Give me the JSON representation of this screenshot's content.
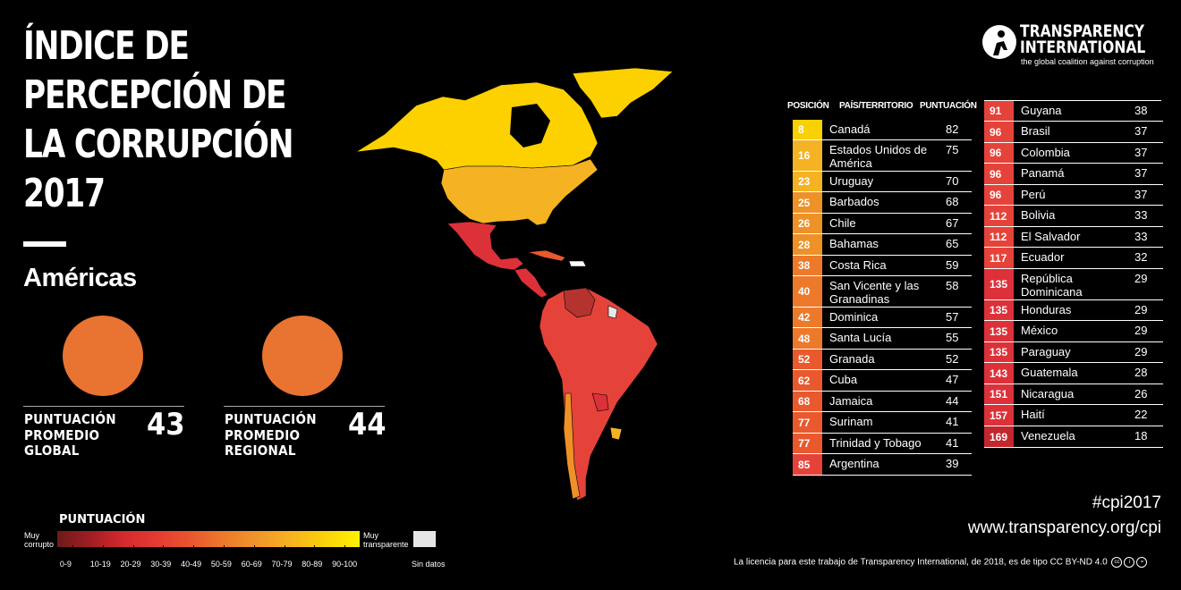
{
  "title": [
    "ÍNDICE DE",
    "PERCEPCIÓN DE",
    "LA CORRUPCIÓN",
    "2017"
  ],
  "region": "Américas",
  "averages": {
    "global": {
      "label": [
        "PUNTUACIÓN",
        "PROMEDIO",
        "GLOBAL"
      ],
      "value": "43"
    },
    "regional": {
      "label": [
        "PUNTUACIÓN",
        "PROMEDIO",
        "REGIONAL"
      ],
      "value": "44"
    }
  },
  "logo": {
    "line1": "TRANSPARENCY",
    "line2": "INTERNATIONAL",
    "tagline": "the global coalition against corruption"
  },
  "table": {
    "headers": {
      "position": "POSICIÓN",
      "country": "PAÍS/TERRITORIO",
      "score": "PUNTUACIÓN"
    },
    "left": [
      {
        "rank": "8",
        "country": "Canadá",
        "score": "82",
        "color": "#f9d100"
      },
      {
        "rank": "16",
        "country": "Estados Unidos de América",
        "score": "75",
        "color": "#f5b324"
      },
      {
        "rank": "23",
        "country": "Uruguay",
        "score": "70",
        "color": "#f5b324"
      },
      {
        "rank": "25",
        "country": "Barbados",
        "score": "68",
        "color": "#ee9127"
      },
      {
        "rank": "26",
        "country": "Chile",
        "score": "67",
        "color": "#ee9127"
      },
      {
        "rank": "28",
        "country": "Bahamas",
        "score": "65",
        "color": "#ee9127"
      },
      {
        "rank": "38",
        "country": "Costa Rica",
        "score": "59",
        "color": "#ec7a2a"
      },
      {
        "rank": "40",
        "country": "San Vicente y las Granadinas",
        "score": "58",
        "color": "#ec7a2a"
      },
      {
        "rank": "42",
        "country": "Dominica",
        "score": "57",
        "color": "#ec7a2a"
      },
      {
        "rank": "48",
        "country": "Santa Lucía",
        "score": "55",
        "color": "#ec7a2a"
      },
      {
        "rank": "52",
        "country": "Granada",
        "score": "52",
        "color": "#e9592d"
      },
      {
        "rank": "62",
        "country": "Cuba",
        "score": "47",
        "color": "#e9592d"
      },
      {
        "rank": "68",
        "country": "Jamaica",
        "score": "44",
        "color": "#e9592d"
      },
      {
        "rank": "77",
        "country": "Surinam",
        "score": "41",
        "color": "#e9592d"
      },
      {
        "rank": "77",
        "country": "Trinidad y Tobago",
        "score": "41",
        "color": "#e9592d"
      },
      {
        "rank": "85",
        "country": "Argentina",
        "score": "39",
        "color": "#e5433a"
      }
    ],
    "right": [
      {
        "rank": "91",
        "country": "Guyana",
        "score": "38",
        "color": "#e5433a"
      },
      {
        "rank": "96",
        "country": "Brasil",
        "score": "37",
        "color": "#e5433a"
      },
      {
        "rank": "96",
        "country": "Colombia",
        "score": "37",
        "color": "#e5433a"
      },
      {
        "rank": "96",
        "country": "Panamá",
        "score": "37",
        "color": "#e5433a"
      },
      {
        "rank": "96",
        "country": "Perú",
        "score": "37",
        "color": "#e5433a"
      },
      {
        "rank": "112",
        "country": "Bolivia",
        "score": "33",
        "color": "#e5433a"
      },
      {
        "rank": "112",
        "country": "El Salvador",
        "score": "33",
        "color": "#e5433a"
      },
      {
        "rank": "117",
        "country": "Ecuador",
        "score": "32",
        "color": "#e5433a"
      },
      {
        "rank": "135",
        "country": "República Dominicana",
        "score": "29",
        "color": "#dd3139"
      },
      {
        "rank": "135",
        "country": "Honduras",
        "score": "29",
        "color": "#dd3139"
      },
      {
        "rank": "135",
        "country": "México",
        "score": "29",
        "color": "#dd3139"
      },
      {
        "rank": "135",
        "country": "Paraguay",
        "score": "29",
        "color": "#dd3139"
      },
      {
        "rank": "143",
        "country": "Guatemala",
        "score": "28",
        "color": "#dd3139"
      },
      {
        "rank": "151",
        "country": "Nicaragua",
        "score": "26",
        "color": "#dd3139"
      },
      {
        "rank": "157",
        "country": "Haití",
        "score": "22",
        "color": "#dd3139"
      },
      {
        "rank": "169",
        "country": "Venezuela",
        "score": "18",
        "color": "#c4262e"
      }
    ]
  },
  "legend": {
    "title": "PUNTUACIÓN",
    "low": [
      "Muy",
      "corrupto"
    ],
    "high": [
      "Muy",
      "transparente"
    ],
    "ranges": [
      "0-9",
      "10-19",
      "20-29",
      "30-39",
      "40-49",
      "50-59",
      "60-69",
      "70-79",
      "80-89",
      "90-100"
    ],
    "no_data": "Sin datos"
  },
  "hashtag": "#cpi2017",
  "url": "www.transparency.org/cpi",
  "license": "La licencia para este trabajo de Transparency International, de 2018, es de tipo CC BY-ND 4.0",
  "colors": {
    "canada": "#fdd000",
    "usa": "#f5b324",
    "mexico": "#dd3139",
    "south_america": "#e5433a",
    "venezuela": "#b5332e",
    "chile": "#ee9127"
  }
}
